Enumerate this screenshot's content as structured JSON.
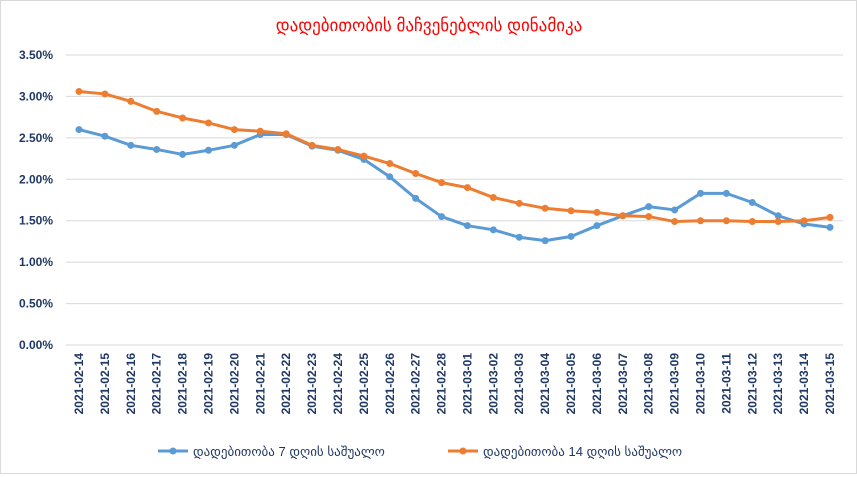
{
  "chart_data": {
    "type": "line",
    "title": "დადებითობის მაჩვენებლის დინამიკა",
    "xlabel": "",
    "ylabel": "",
    "ylim": [
      0,
      3.5
    ],
    "yticks": [
      "0.00%",
      "0.50%",
      "1.00%",
      "1.50%",
      "2.00%",
      "2.50%",
      "3.00%",
      "3.50%"
    ],
    "ytick_values": [
      0,
      0.5,
      1,
      1.5,
      2,
      2.5,
      3,
      3.5
    ],
    "grid": true,
    "legend_position": "bottom",
    "x": [
      "2021-02-14",
      "2021-02-15",
      "2021-02-16",
      "2021-02-17",
      "2021-02-18",
      "2021-02-19",
      "2021-02-20",
      "2021-02-21",
      "2021-02-22",
      "2021-02-23",
      "2021-02-24",
      "2021-02-25",
      "2021-02-26",
      "2021-02-27",
      "2021-02-28",
      "2021-03-01",
      "2021-03-02",
      "2021-03-03",
      "2021-03-04",
      "2021-03-05",
      "2021-03-06",
      "2021-03-07",
      "2021-03-08",
      "2021-03-09",
      "2021-03-10",
      "2021-03-11",
      "2021-03-12",
      "2021-03-13",
      "2021-03-14",
      "2021-03-15"
    ],
    "series": [
      {
        "name": "დადებითობა 7 დღის საშუალო",
        "color": "#5b9bd5",
        "values": [
          2.6,
          2.52,
          2.41,
          2.36,
          2.3,
          2.35,
          2.41,
          2.54,
          2.54,
          2.4,
          2.35,
          2.24,
          2.03,
          1.77,
          1.55,
          1.44,
          1.39,
          1.3,
          1.26,
          1.31,
          1.44,
          1.56,
          1.67,
          1.63,
          1.83,
          1.83,
          1.72,
          1.56,
          1.46,
          1.42
        ]
      },
      {
        "name": "დადებითობა 14 დღის საშუალო",
        "color": "#ed7d31",
        "values": [
          3.06,
          3.03,
          2.94,
          2.82,
          2.74,
          2.68,
          2.6,
          2.58,
          2.55,
          2.41,
          2.36,
          2.28,
          2.19,
          2.07,
          1.96,
          1.9,
          1.78,
          1.71,
          1.65,
          1.62,
          1.6,
          1.56,
          1.55,
          1.49,
          1.5,
          1.5,
          1.49,
          1.49,
          1.5,
          1.54
        ]
      }
    ],
    "title_color": "#ff0000",
    "axis_text_color": "#1f3864"
  }
}
